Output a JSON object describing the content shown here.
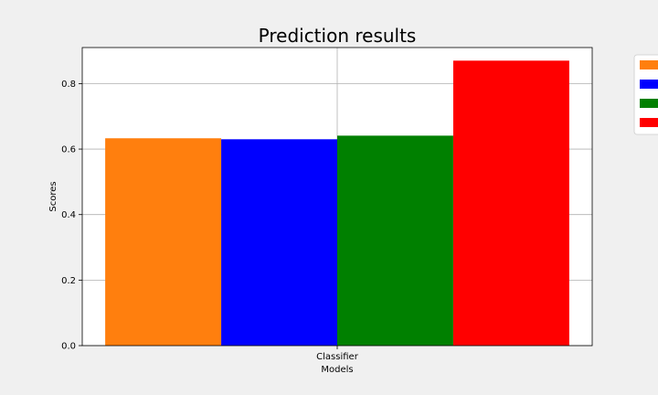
{
  "chart_data": {
    "type": "bar",
    "title": "Prediction results",
    "xlabel": "Models",
    "ylabel": "Scores",
    "categories": [
      "Classifier"
    ],
    "series": [
      {
        "values": [
          0.633
        ],
        "color": "#ff7f0e"
      },
      {
        "values": [
          0.63
        ],
        "color": "#0000ff"
      },
      {
        "values": [
          0.641
        ],
        "color": "#008000"
      },
      {
        "values": [
          0.87
        ],
        "color": "#ff0000"
      }
    ],
    "ylim": [
      0,
      0.91
    ],
    "yticks": [
      "0.0",
      "0.2",
      "0.4",
      "0.6",
      "0.8"
    ],
    "grid": true,
    "legend": "outside-top-right",
    "background": "#f0f0f0",
    "plot_background": "#ffffff"
  }
}
